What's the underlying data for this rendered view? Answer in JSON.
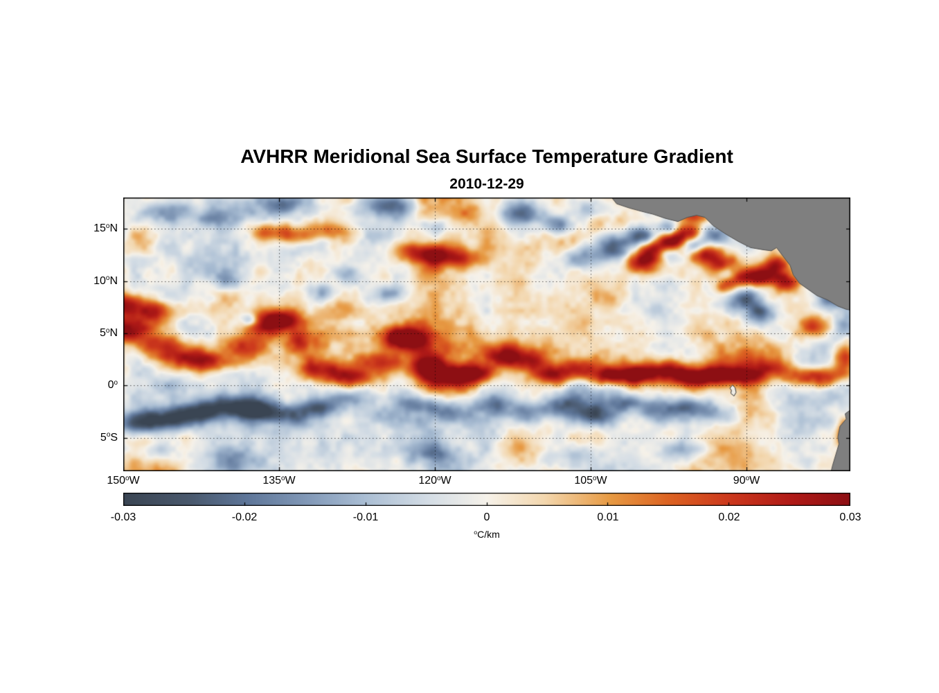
{
  "chart_data": {
    "type": "heatmap",
    "title": "AVHRR Meridional Sea Surface Temperature Gradient",
    "subtitle": "2010-12-29",
    "units": "°C/km",
    "x_range_degW": [
      150,
      80
    ],
    "y_range_degN": [
      18,
      -8.2
    ],
    "grid": "on",
    "grid_color": "rgba(0,0,0,0.65)",
    "degree_symbol": "o",
    "x_axis": {
      "ticks": [
        {
          "value": 150,
          "num": "150",
          "hemi": "W"
        },
        {
          "value": 135,
          "num": "135",
          "hemi": "W"
        },
        {
          "value": 120,
          "num": "120",
          "hemi": "W"
        },
        {
          "value": 105,
          "num": "105",
          "hemi": "W"
        },
        {
          "value": 90,
          "num": "90",
          "hemi": "W"
        }
      ]
    },
    "y_axis": {
      "ticks": [
        {
          "value": 15,
          "num": "15",
          "hemi": "N"
        },
        {
          "value": 10,
          "num": "10",
          "hemi": "N"
        },
        {
          "value": 5,
          "num": "5",
          "hemi": "N"
        },
        {
          "value": 0,
          "num": "0",
          "hemi": ""
        },
        {
          "value": -5,
          "num": "5",
          "hemi": "S"
        }
      ]
    },
    "colorbar": {
      "min": -0.03,
      "max": 0.03,
      "tick_values": [
        -0.03,
        -0.02,
        -0.01,
        0,
        0.01,
        0.02,
        0.03
      ],
      "tick_labels": [
        "-0.03",
        "-0.02",
        "-0.01",
        "0",
        "0.01",
        "0.02",
        "0.03"
      ],
      "label": "°C/km",
      "label_sup": "o",
      "label_text": "C/km"
    },
    "colormap": [
      {
        "t": 0.0,
        "c": "#3a4553"
      },
      {
        "t": 0.09,
        "c": "#49586c"
      },
      {
        "t": 0.17,
        "c": "#5e7699"
      },
      {
        "t": 0.26,
        "c": "#859cba"
      },
      {
        "t": 0.33,
        "c": "#a9bdd3"
      },
      {
        "t": 0.42,
        "c": "#d4dde5"
      },
      {
        "t": 0.5,
        "c": "#f6f2ea"
      },
      {
        "t": 0.58,
        "c": "#f3d7ae"
      },
      {
        "t": 0.67,
        "c": "#e79a43"
      },
      {
        "t": 0.75,
        "c": "#dc6322"
      },
      {
        "t": 0.83,
        "c": "#cd3a1d"
      },
      {
        "t": 0.92,
        "c": "#b01a17"
      },
      {
        "t": 1.0,
        "c": "#8d0f13"
      }
    ],
    "noise": {
      "seed": 11,
      "octaves": [
        {
          "scale": 7,
          "amp": 0.009
        },
        {
          "scale": 2.8,
          "amp": 0.0055
        },
        {
          "scale": 1.2,
          "amp": 0.0032
        },
        {
          "scale": 0.55,
          "amp": 0.0018
        }
      ]
    },
    "features_format": [
      "lon_degW",
      "lat_degN",
      "amplitude_C_per_km",
      "rx_deg",
      "ry_deg"
    ],
    "features": [
      [
        115,
        2.8,
        0.007,
        30,
        2.6
      ],
      [
        115,
        -2.6,
        -0.005,
        30,
        2.2
      ],
      [
        140,
        12.5,
        -0.004,
        9,
        3
      ],
      [
        96,
        12.5,
        0.005,
        9,
        3
      ],
      [
        149.5,
        5.4,
        0.026,
        2.6,
        1.2
      ],
      [
        150,
        7.7,
        0.027,
        2.4,
        1.1
      ],
      [
        147,
        7.1,
        0.02,
        2,
        1
      ],
      [
        146.5,
        3.8,
        0.018,
        2.4,
        1
      ],
      [
        144,
        2.6,
        0.02,
        2.4,
        1
      ],
      [
        141,
        2.2,
        0.016,
        2.4,
        1
      ],
      [
        138.5,
        3.7,
        0.02,
        2,
        1
      ],
      [
        136.5,
        5.9,
        0.026,
        1.9,
        1.1
      ],
      [
        134.6,
        6.4,
        0.024,
        1.7,
        1
      ],
      [
        133,
        4.2,
        0.015,
        1.7,
        1.1
      ],
      [
        131,
        1.6,
        0.02,
        2.4,
        1
      ],
      [
        128,
        0.8,
        0.022,
        2.4,
        0.9
      ],
      [
        125.5,
        2.2,
        0.018,
        2,
        1
      ],
      [
        123.6,
        4.6,
        0.026,
        1.7,
        1.1
      ],
      [
        121.9,
        4.5,
        0.022,
        1.4,
        1
      ],
      [
        120.8,
        1.9,
        0.022,
        1.7,
        1.1
      ],
      [
        118.5,
        0.9,
        0.024,
        2.4,
        1
      ],
      [
        116,
        1.2,
        0.02,
        2.1,
        0.9
      ],
      [
        113.5,
        3,
        0.02,
        1.9,
        1
      ],
      [
        111,
        2.4,
        0.018,
        1.9,
        1
      ],
      [
        108.5,
        1,
        0.022,
        2.1,
        0.9
      ],
      [
        106,
        1.8,
        0.022,
        1.9,
        1
      ],
      [
        103.5,
        0.9,
        0.026,
        2.1,
        0.9
      ],
      [
        100.5,
        1.1,
        0.028,
        2.3,
        0.9
      ],
      [
        97.5,
        1.5,
        0.024,
        1.9,
        0.9
      ],
      [
        95,
        0.7,
        0.028,
        2.1,
        0.9
      ],
      [
        92.5,
        1.1,
        0.022,
        1.9,
        0.9
      ],
      [
        90,
        0.9,
        0.02,
        1.9,
        0.9
      ],
      [
        87.5,
        1.7,
        0.018,
        1.9,
        1
      ],
      [
        85,
        0.9,
        0.02,
        1.9,
        0.9
      ],
      [
        82.2,
        0.7,
        0.024,
        1.7,
        1
      ],
      [
        80.6,
        2.6,
        0.026,
        1,
        1.5
      ],
      [
        80.6,
        10.3,
        0.02,
        0.9,
        0.8
      ],
      [
        80.4,
        -4.6,
        0.024,
        0.9,
        1.3
      ],
      [
        136,
        14.7,
        0.018,
        2,
        0.9
      ],
      [
        133,
        14.3,
        0.013,
        2,
        0.9
      ],
      [
        130.5,
        14.9,
        0.015,
        2,
        0.9
      ],
      [
        122,
        12.7,
        0.018,
        2.1,
        1
      ],
      [
        119.5,
        12.5,
        0.022,
        2.1,
        1
      ],
      [
        117,
        12.1,
        0.013,
        1.9,
        0.9
      ],
      [
        117,
        16.6,
        0.013,
        2,
        0.9
      ],
      [
        100,
        11.7,
        0.024,
        1.6,
        0.9
      ],
      [
        99,
        12.9,
        0.03,
        1.7,
        0.9
      ],
      [
        97,
        13.9,
        0.03,
        1.4,
        0.85
      ],
      [
        95.5,
        14.7,
        0.028,
        1.2,
        0.8
      ],
      [
        95,
        16.2,
        0.022,
        1.4,
        0.7
      ],
      [
        94,
        12.7,
        0.028,
        1.5,
        0.9
      ],
      [
        92.3,
        11.5,
        0.024,
        1.4,
        0.9
      ],
      [
        90.5,
        10.3,
        0.022,
        1.4,
        0.9
      ],
      [
        88.3,
        10.5,
        0.026,
        1.5,
        0.9
      ],
      [
        87,
        11.6,
        0.022,
        1.1,
        0.8
      ],
      [
        92,
        9.4,
        0.017,
        1.1,
        0.8
      ],
      [
        86.2,
        9.9,
        0.023,
        1.2,
        0.9
      ],
      [
        83.5,
        5.7,
        0.017,
        1.7,
        1
      ],
      [
        103,
        13.2,
        -0.026,
        2,
        1.2
      ],
      [
        105.8,
        12.2,
        -0.017,
        1.9,
        1
      ],
      [
        100.2,
        14.3,
        -0.023,
        1.4,
        0.85
      ],
      [
        97.8,
        12.7,
        -0.021,
        1.1,
        0.75
      ],
      [
        95,
        13.3,
        -0.019,
        1.1,
        0.75
      ],
      [
        93,
        14.3,
        -0.017,
        1.4,
        0.85
      ],
      [
        97.6,
        15.1,
        -0.016,
        1,
        0.7
      ],
      [
        90,
        8.3,
        -0.028,
        1.8,
        1.3
      ],
      [
        88.5,
        6.9,
        -0.02,
        1.5,
        1
      ],
      [
        91.6,
        10.9,
        -0.018,
        1.1,
        0.8
      ],
      [
        82,
        8.4,
        -0.022,
        1.4,
        1
      ],
      [
        80.6,
        5.6,
        -0.014,
        1,
        1
      ],
      [
        146,
        16.6,
        -0.016,
        2.4,
        1
      ],
      [
        141.5,
        15.9,
        -0.011,
        1.9,
        0.8
      ],
      [
        134.5,
        17.3,
        -0.017,
        2.4,
        1
      ],
      [
        124.5,
        17.2,
        -0.022,
        2.7,
        1.2
      ],
      [
        120,
        15.3,
        -0.011,
        1.4,
        0.8
      ],
      [
        111.5,
        16.5,
        -0.025,
        2.1,
        1.2
      ],
      [
        108,
        15.3,
        -0.019,
        1.7,
        1
      ],
      [
        104.5,
        16.9,
        -0.013,
        1.9,
        1
      ],
      [
        137.8,
        6.3,
        -0.019,
        0.8,
        0.6
      ],
      [
        139.8,
        10.1,
        -0.011,
        1.4,
        0.8
      ],
      [
        130.5,
        9,
        -0.014,
        1.9,
        1
      ],
      [
        128,
        10.6,
        -0.011,
        1.4,
        0.8
      ],
      [
        124.3,
        8.9,
        -0.014,
        1.4,
        0.9
      ],
      [
        148.5,
        -3.6,
        -0.026,
        2.4,
        1.1
      ],
      [
        145.5,
        -3.2,
        -0.022,
        2.4,
        1
      ],
      [
        142.5,
        -2.6,
        -0.02,
        2.4,
        1
      ],
      [
        139.5,
        -2,
        -0.024,
        2.4,
        1
      ],
      [
        136.8,
        -2.4,
        -0.022,
        2.1,
        1
      ],
      [
        134,
        -3,
        -0.018,
        1.9,
        1
      ],
      [
        131,
        -2,
        -0.016,
        1.9,
        0.9
      ],
      [
        128.5,
        -1.2,
        -0.013,
        1.9,
        0.8
      ],
      [
        125,
        -2.8,
        -0.012,
        1.9,
        1
      ],
      [
        121.5,
        -1.8,
        -0.015,
        1.9,
        0.9
      ],
      [
        118,
        -2.6,
        -0.012,
        1.9,
        1
      ],
      [
        114.5,
        -1.8,
        -0.012,
        1.9,
        0.9
      ],
      [
        111,
        -2.6,
        -0.013,
        1.9,
        1
      ],
      [
        107.5,
        -2,
        -0.017,
        2.1,
        1
      ],
      [
        104.5,
        -2.8,
        -0.021,
        2.1,
        1
      ],
      [
        101.5,
        -1.6,
        -0.019,
        1.9,
        0.9
      ],
      [
        98.5,
        -2.4,
        -0.019,
        1.9,
        1
      ],
      [
        95.5,
        -2,
        -0.017,
        1.9,
        0.9
      ],
      [
        92.8,
        -2.8,
        -0.013,
        1.9,
        1
      ],
      [
        147,
        -6.5,
        -0.013,
        2.8,
        1.2
      ],
      [
        139,
        -7,
        -0.009,
        2.8,
        1.2
      ],
      [
        120,
        -6.5,
        -0.011,
        2.4,
        1
      ],
      [
        106,
        -6.8,
        -0.013,
        2.4,
        1.2
      ],
      [
        96,
        -6.2,
        -0.011,
        2.4,
        1
      ]
    ],
    "land": {
      "color": "#7f7f7f",
      "edge": "#4f4f4f",
      "polygons": [
        [
          [
            103.3,
            18.4
          ],
          [
            102.5,
            17.4
          ],
          [
            101.3,
            17.0
          ],
          [
            100.2,
            16.7
          ],
          [
            99.0,
            16.4
          ],
          [
            97.8,
            16.0
          ],
          [
            96.6,
            15.7
          ],
          [
            95.7,
            16.1
          ],
          [
            94.8,
            16.3
          ],
          [
            94.0,
            16.1
          ],
          [
            93.2,
            15.3
          ],
          [
            92.0,
            14.5
          ],
          [
            90.8,
            13.8
          ],
          [
            89.6,
            13.2
          ],
          [
            88.4,
            13.0
          ],
          [
            87.6,
            12.9
          ],
          [
            87.1,
            13.2
          ],
          [
            86.5,
            12.4
          ],
          [
            85.8,
            11.5
          ],
          [
            85.5,
            10.6
          ],
          [
            84.9,
            9.8
          ],
          [
            84.2,
            9.3
          ],
          [
            83.2,
            8.6
          ],
          [
            82.2,
            8.2
          ],
          [
            81.2,
            7.6
          ],
          [
            80.4,
            7.3
          ],
          [
            79.8,
            7.2
          ],
          [
            79.8,
            18.4
          ]
        ],
        [
          [
            79.8,
            -2.2
          ],
          [
            80.5,
            -2.7
          ],
          [
            80.4,
            -3.2
          ],
          [
            81.0,
            -3.9
          ],
          [
            81.2,
            -4.9
          ],
          [
            81.1,
            -5.6
          ],
          [
            81.4,
            -6.6
          ],
          [
            81.7,
            -7.6
          ],
          [
            81.9,
            -8.4
          ],
          [
            79.8,
            -8.4
          ]
        ]
      ],
      "islands": [
        {
          "name": "Galapagos",
          "outline": [
            [
              91.6,
              -0.25
            ],
            [
              91.35,
              0.05
            ],
            [
              91.1,
              -0.2
            ],
            [
              91.0,
              -0.65
            ],
            [
              91.2,
              -1.0
            ],
            [
              91.5,
              -0.75
            ],
            [
              91.45,
              -0.45
            ]
          ],
          "fill": "#efece5",
          "edge": "#333333"
        }
      ]
    }
  }
}
